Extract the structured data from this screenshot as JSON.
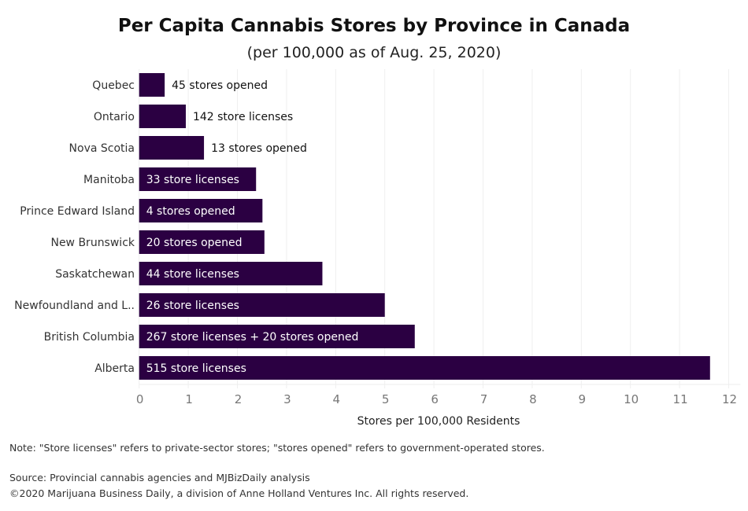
{
  "chart_data": {
    "type": "bar",
    "orientation": "horizontal",
    "title": "Per Capita Cannabis Stores by Province in Canada",
    "subtitle": "(per 100,000 as of Aug. 25, 2020)",
    "xlabel": "Stores per 100,000 Residents",
    "ylabel": "",
    "xlim": [
      0,
      12
    ],
    "xticks": [
      "0",
      "1",
      "2",
      "3",
      "4",
      "5",
      "6",
      "7",
      "8",
      "9",
      "10",
      "11",
      "12"
    ],
    "grid": "vertical",
    "bar_color": "#2b0042",
    "categories": [
      "Quebec",
      "Ontario",
      "Nova Scotia",
      "Manitoba",
      "Prince Edward Island",
      "New Brunswick",
      "Saskatchewan",
      "Newfoundland and L..",
      "British Columbia",
      "Alberta"
    ],
    "values": [
      0.52,
      0.95,
      1.32,
      2.38,
      2.51,
      2.55,
      3.73,
      5.0,
      5.61,
      11.62
    ],
    "labels": [
      "45 stores opened",
      "142 store licenses",
      "13 stores opened",
      "33 store licenses",
      "4 stores opened",
      "20 stores opened",
      "44 store licenses",
      "26 store licenses",
      "267 store licenses + 20 stores opened",
      "515 store licenses"
    ]
  },
  "notes": {
    "note": "Note: \"Store licenses\" refers to private-sector stores; \"stores opened\" refers to government-operated stores.",
    "source": "Source: Provincial cannabis agencies and MJBizDaily analysis",
    "copyright": "©2020 Marijuana Business Daily, a division of Anne Holland Ventures Inc. All rights reserved."
  }
}
